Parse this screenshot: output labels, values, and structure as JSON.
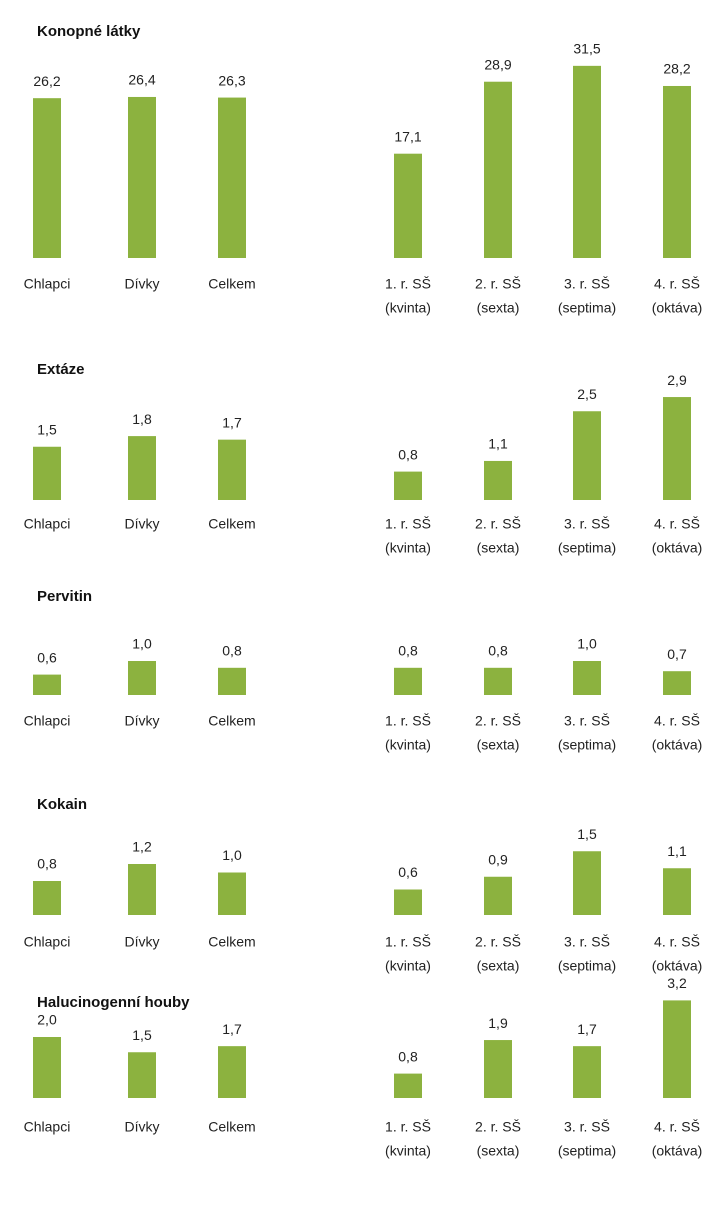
{
  "chart_data": [
    {
      "type": "bar",
      "title": "Konopné látky",
      "color": "#8cb23f",
      "categories": [
        [
          "Chlapci"
        ],
        [
          "Dívky"
        ],
        [
          "Celkem"
        ],
        [
          "1. r. SŠ",
          "(kvinta)"
        ],
        [
          "2. r. SŠ",
          "(sexta)"
        ],
        [
          "3. r. SŠ",
          "(septima)"
        ],
        [
          "4. r. SŠ",
          "(oktáva)"
        ]
      ],
      "values": [
        26.2,
        26.4,
        26.3,
        17.1,
        28.9,
        31.5,
        28.2
      ],
      "value_labels": [
        "26,2",
        "26,4",
        "26,3",
        "17,1",
        "28,9",
        "31,5",
        "28,2"
      ]
    },
    {
      "type": "bar",
      "title": "Extáze",
      "color": "#8cb23f",
      "categories": [
        [
          "Chlapci"
        ],
        [
          "Dívky"
        ],
        [
          "Celkem"
        ],
        [
          "1. r. SŠ",
          "(kvinta)"
        ],
        [
          "2. r. SŠ",
          "(sexta)"
        ],
        [
          "3. r. SŠ",
          "(septima)"
        ],
        [
          "4. r. SŠ",
          "(oktáva)"
        ]
      ],
      "values": [
        1.5,
        1.8,
        1.7,
        0.8,
        1.1,
        2.5,
        2.9
      ],
      "value_labels": [
        "1,5",
        "1,8",
        "1,7",
        "0,8",
        "1,1",
        "2,5",
        "2,9"
      ]
    },
    {
      "type": "bar",
      "title": "Pervitin",
      "color": "#8cb23f",
      "categories": [
        [
          "Chlapci"
        ],
        [
          "Dívky"
        ],
        [
          "Celkem"
        ],
        [
          "1. r. SŠ",
          "(kvinta)"
        ],
        [
          "2. r. SŠ",
          "(sexta)"
        ],
        [
          "3. r. SŠ",
          "(septima)"
        ],
        [
          "4. r. SŠ",
          "(oktáva)"
        ]
      ],
      "values": [
        0.6,
        1.0,
        0.8,
        0.8,
        0.8,
        1.0,
        0.7
      ],
      "value_labels": [
        "0,6",
        "1,0",
        "0,8",
        "0,8",
        "0,8",
        "1,0",
        "0,7"
      ]
    },
    {
      "type": "bar",
      "title": "Kokain",
      "color": "#8cb23f",
      "categories": [
        [
          "Chlapci"
        ],
        [
          "Dívky"
        ],
        [
          "Celkem"
        ],
        [
          "1. r. SŠ",
          "(kvinta)"
        ],
        [
          "2. r. SŠ",
          "(sexta)"
        ],
        [
          "3. r. SŠ",
          "(septima)"
        ],
        [
          "4. r. SŠ",
          "(oktáva)"
        ]
      ],
      "values": [
        0.8,
        1.2,
        1.0,
        0.6,
        0.9,
        1.5,
        1.1
      ],
      "value_labels": [
        "0,8",
        "1,2",
        "1,0",
        "0,6",
        "0,9",
        "1,5",
        "1,1"
      ]
    },
    {
      "type": "bar",
      "title": "Halucinogenní houby",
      "color": "#8cb23f",
      "categories": [
        [
          "Chlapci"
        ],
        [
          "Dívky"
        ],
        [
          "Celkem"
        ],
        [
          "1. r. SŠ",
          "(kvinta)"
        ],
        [
          "2. r. SŠ",
          "(sexta)"
        ],
        [
          "3. r. SŠ",
          "(septima)"
        ],
        [
          "4. r. SŠ",
          "(oktáva)"
        ]
      ],
      "values": [
        2.0,
        1.5,
        1.7,
        0.8,
        1.9,
        1.7,
        3.2
      ],
      "value_labels": [
        "2,0",
        "1,5",
        "1,7",
        "0,8",
        "1,9",
        "1,7",
        "3,2"
      ]
    }
  ]
}
